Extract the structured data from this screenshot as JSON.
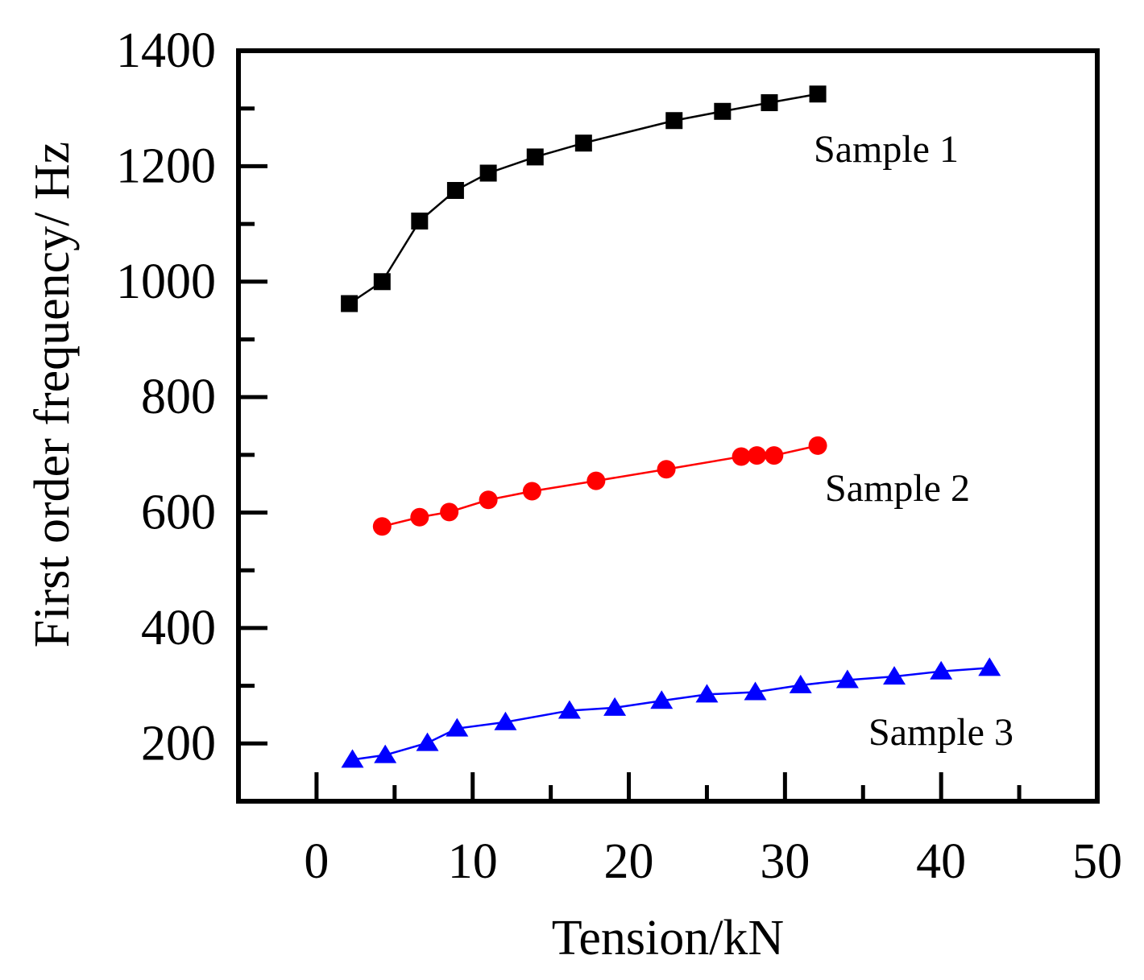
{
  "chart_data": {
    "type": "line",
    "xlabel": "Tension/kN",
    "ylabel": "First order frequency/ Hz",
    "xlim": [
      -5,
      50
    ],
    "ylim": [
      100,
      1400
    ],
    "xticks": [
      0,
      10,
      20,
      30,
      40,
      50
    ],
    "yticks": [
      200,
      400,
      600,
      800,
      1000,
      1200,
      1400
    ],
    "grid": false,
    "series": [
      {
        "name": "Sample 1",
        "color": "#000000",
        "marker": "square",
        "x": [
          2.1,
          4.2,
          6.6,
          8.9,
          11.0,
          14.0,
          17.1,
          22.9,
          26.0,
          29.0,
          32.1
        ],
        "y": [
          962,
          1000,
          1105,
          1158,
          1188,
          1216,
          1240,
          1279,
          1295,
          1310,
          1325
        ]
      },
      {
        "name": "Sample 2",
        "color": "#ff0000",
        "marker": "circle",
        "x": [
          4.2,
          6.6,
          8.5,
          11.0,
          13.8,
          17.9,
          22.4,
          27.2,
          28.2,
          29.3,
          32.1
        ],
        "y": [
          576,
          592,
          601,
          622,
          637,
          655,
          675,
          697,
          699,
          699,
          716
        ]
      },
      {
        "name": "Sample 3",
        "color": "#0000ff",
        "marker": "triangle",
        "x": [
          2.3,
          4.4,
          7.1,
          9.0,
          12.1,
          16.2,
          19.1,
          22.1,
          25.0,
          28.1,
          31.0,
          34.0,
          37.0,
          40.0,
          43.1
        ],
        "y": [
          172,
          180,
          201,
          226,
          237,
          257,
          262,
          274,
          285,
          289,
          301,
          310,
          316,
          325,
          331
        ]
      }
    ]
  }
}
